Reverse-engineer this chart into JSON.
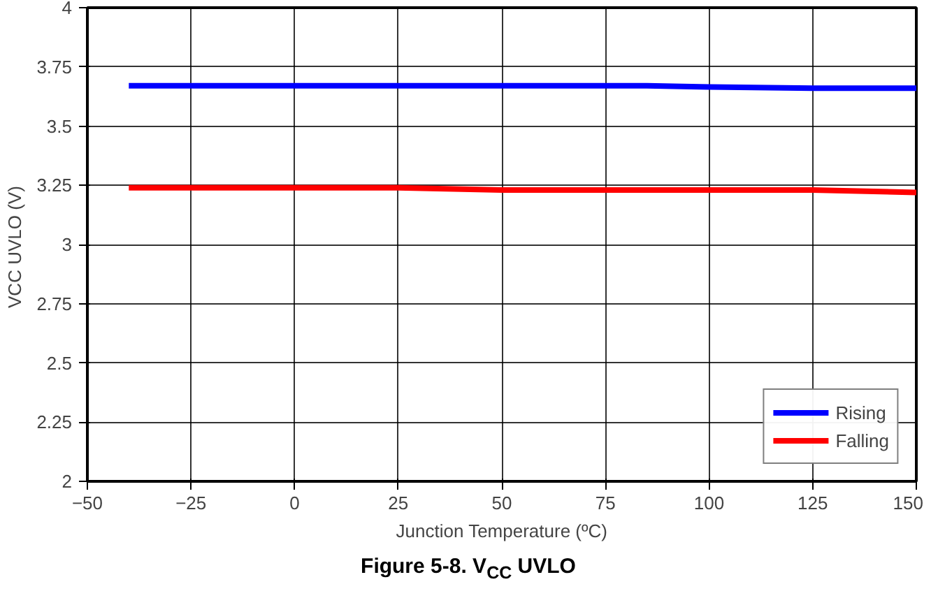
{
  "chart_data": {
    "type": "line",
    "title": "Figure 5-8. V$_{CC}$ UVLO",
    "xlabel": "Junction Temperature (ºC)",
    "ylabel": "VCC UVLO  (V)",
    "x": [
      -40,
      0,
      25,
      50,
      85,
      100,
      125,
      150
    ],
    "series": [
      {
        "name": "Rising",
        "color": "#0000ff",
        "values": [
          3.67,
          3.67,
          3.67,
          3.67,
          3.67,
          3.665,
          3.66,
          3.66
        ]
      },
      {
        "name": "Falling",
        "color": "#ff0000",
        "values": [
          3.24,
          3.24,
          3.24,
          3.23,
          3.23,
          3.23,
          3.23,
          3.22
        ]
      }
    ],
    "xlim": [
      -50,
      150
    ],
    "xticks": [
      -50,
      -25,
      0,
      25,
      50,
      75,
      100,
      125,
      150
    ],
    "ylim": [
      2,
      4
    ],
    "yticks": [
      2,
      2.25,
      2.5,
      2.75,
      3,
      3.25,
      3.5,
      3.75,
      4
    ],
    "grid": true,
    "legend": "bottom right",
    "marker": "none",
    "line_style": "solid"
  }
}
